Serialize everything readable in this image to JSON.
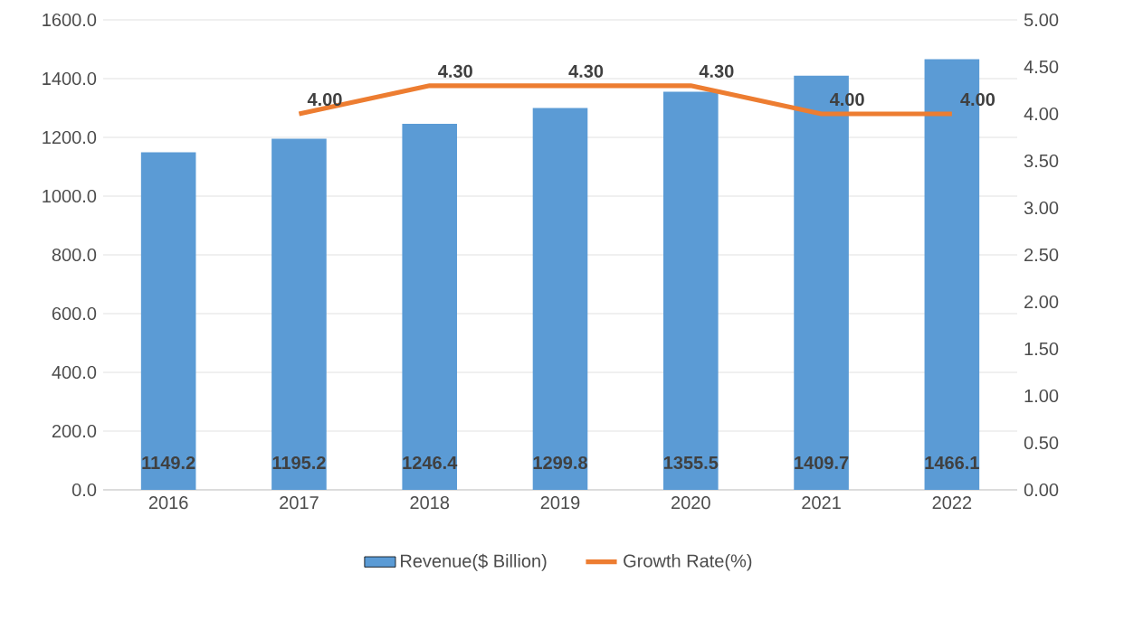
{
  "chart_data": {
    "type": "bar",
    "categories": [
      "2016",
      "2017",
      "2018",
      "2019",
      "2020",
      "2021",
      "2022"
    ],
    "series": [
      {
        "name": "Revenue($ Billion)",
        "color": "#5b9bd5",
        "values": [
          1149.2,
          1195.2,
          1246.4,
          1299.8,
          1355.5,
          1409.7,
          1466.1
        ],
        "value_labels": [
          "1149.2",
          "1195.2",
          "1246.4",
          "1299.8",
          "1355.5",
          "1409.7",
          "1466.1"
        ]
      },
      {
        "name": "Growth Rate(%)",
        "type": "line",
        "axis": "y2",
        "color": "#ed7d31",
        "values": [
          null,
          4.0,
          4.3,
          4.3,
          4.3,
          4.0,
          4.0
        ],
        "value_labels": [
          null,
          "4.00",
          "4.30",
          "4.30",
          "4.30",
          "4.00",
          "4.00"
        ]
      }
    ],
    "ylim": [
      0,
      1600
    ],
    "yticks": [
      {
        "value": 0,
        "label": "0.0"
      },
      {
        "value": 200,
        "label": "200.0"
      },
      {
        "value": 400,
        "label": "400.0"
      },
      {
        "value": 600,
        "label": "600.0"
      },
      {
        "value": 800,
        "label": "800.0"
      },
      {
        "value": 1000,
        "label": "1000.0"
      },
      {
        "value": 1200,
        "label": "1200.0"
      },
      {
        "value": 1400,
        "label": "1400.0"
      },
      {
        "value": 1600,
        "label": "1600.0"
      }
    ],
    "y2lim": [
      0,
      5
    ],
    "y2ticks": [
      {
        "value": 0,
        "label": "0.00"
      },
      {
        "value": 0.5,
        "label": "0.50"
      },
      {
        "value": 1,
        "label": "1.00"
      },
      {
        "value": 1.5,
        "label": "1.50"
      },
      {
        "value": 2,
        "label": "2.00"
      },
      {
        "value": 2.5,
        "label": "2.50"
      },
      {
        "value": 3,
        "label": "3.00"
      },
      {
        "value": 3.5,
        "label": "3.50"
      },
      {
        "value": 4,
        "label": "4.00"
      },
      {
        "value": 4.5,
        "label": "4.50"
      },
      {
        "value": 5,
        "label": "5.00"
      }
    ],
    "grid": "y",
    "legend": "bottom"
  }
}
